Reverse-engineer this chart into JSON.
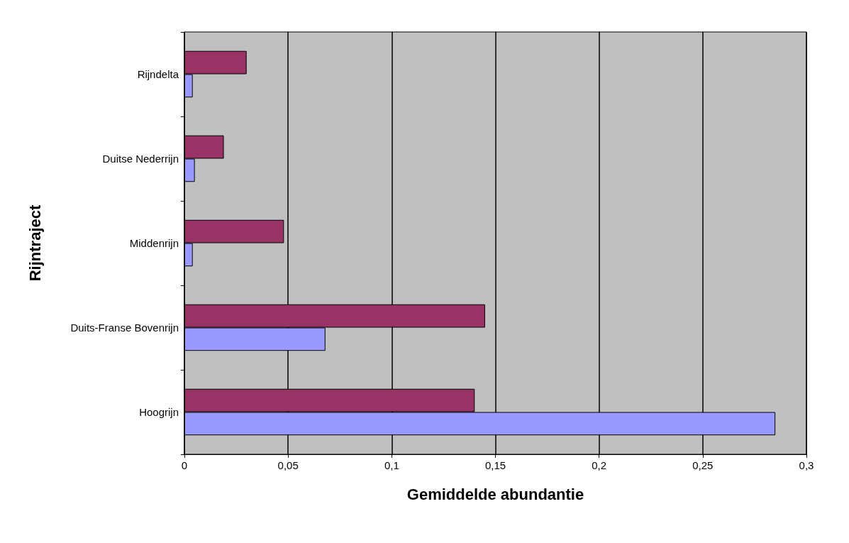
{
  "chart_data": {
    "type": "bar",
    "orientation": "horizontal",
    "xlabel": "Gemiddelde abundantie",
    "ylabel": "Rijntraject",
    "categories": [
      "Rijndelta",
      "Duitse Nederrijn",
      "Middenrijn",
      "Duits-Franse Bovenrijn",
      "Hoogrijn"
    ],
    "series": [
      {
        "color": "#993366",
        "values": [
          0.03,
          0.019,
          0.048,
          0.145,
          0.14
        ]
      },
      {
        "color": "#9999ff",
        "values": [
          0.004,
          0.005,
          0.004,
          0.068,
          0.285
        ]
      }
    ],
    "xlim": [
      0,
      0.3
    ],
    "xticks": [
      0,
      {
        "value": 0.05,
        "label": "0,05"
      },
      {
        "value": 0.1,
        "label": "0,1"
      },
      {
        "value": 0.15,
        "label": "0,15"
      },
      {
        "value": 0.2,
        "label": "0,2"
      },
      {
        "value": 0.25,
        "label": "0,25"
      },
      {
        "value": 0.3,
        "label": "0,3"
      }
    ],
    "grid": "x"
  }
}
